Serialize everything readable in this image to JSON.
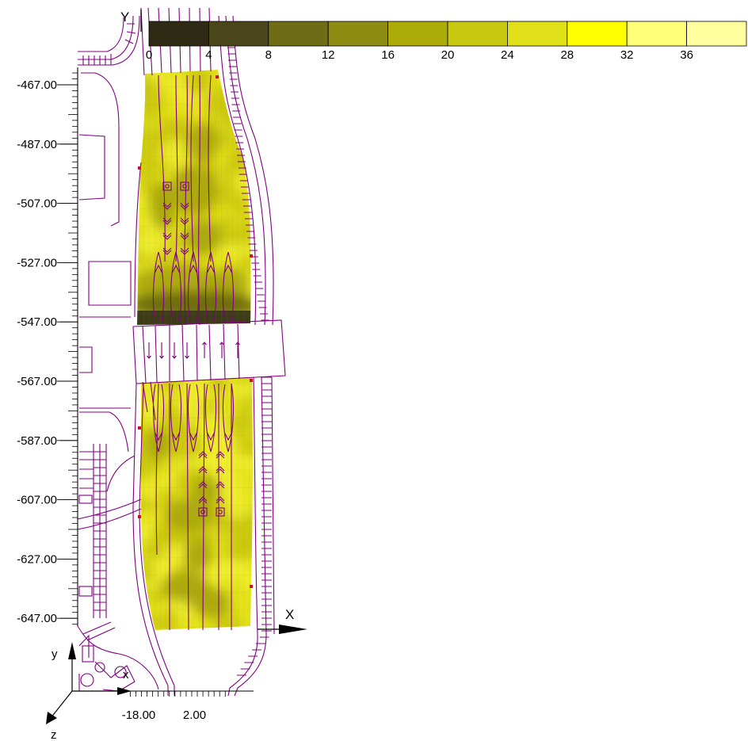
{
  "chart_data": {
    "type": "heatmap",
    "title": "",
    "colorbar": {
      "ticks": [
        "0",
        "4",
        "8",
        "12",
        "16",
        "20",
        "24",
        "28",
        "32",
        "36"
      ],
      "colors": [
        "#2e2a14",
        "#49461a",
        "#6e6c14",
        "#8e8c12",
        "#acab0a",
        "#c8c710",
        "#e0e018",
        "#ffff00",
        "#ffff78",
        "#ffffa0"
      ]
    },
    "y_axis": {
      "label": "y",
      "ticks": [
        "-467.00",
        "-487.00",
        "-507.00",
        "-527.00",
        "-547.00",
        "-567.00",
        "-587.00",
        "-607.00",
        "-627.00",
        "-647.00"
      ],
      "range": [
        -651,
        -462
      ]
    },
    "x_axis": {
      "label": "x",
      "ticks": [
        "-18.00",
        "2.00"
      ],
      "range": [
        -21,
        13
      ]
    },
    "axis_labels": {
      "top_y": "Y",
      "right_x": "X",
      "triad_y": "y",
      "triad_x": "x",
      "triad_z": "z"
    },
    "field": {
      "description_levels": "dark low-value band around y=-547; bright high values elsewhere",
      "low_band_y": [
        -552,
        -540
      ],
      "colors": {
        "high": "#e4e21a",
        "mid": "#c9c70c",
        "low": "#6a6810",
        "lowest": "#3d3c18",
        "road": "#800080"
      }
    }
  }
}
